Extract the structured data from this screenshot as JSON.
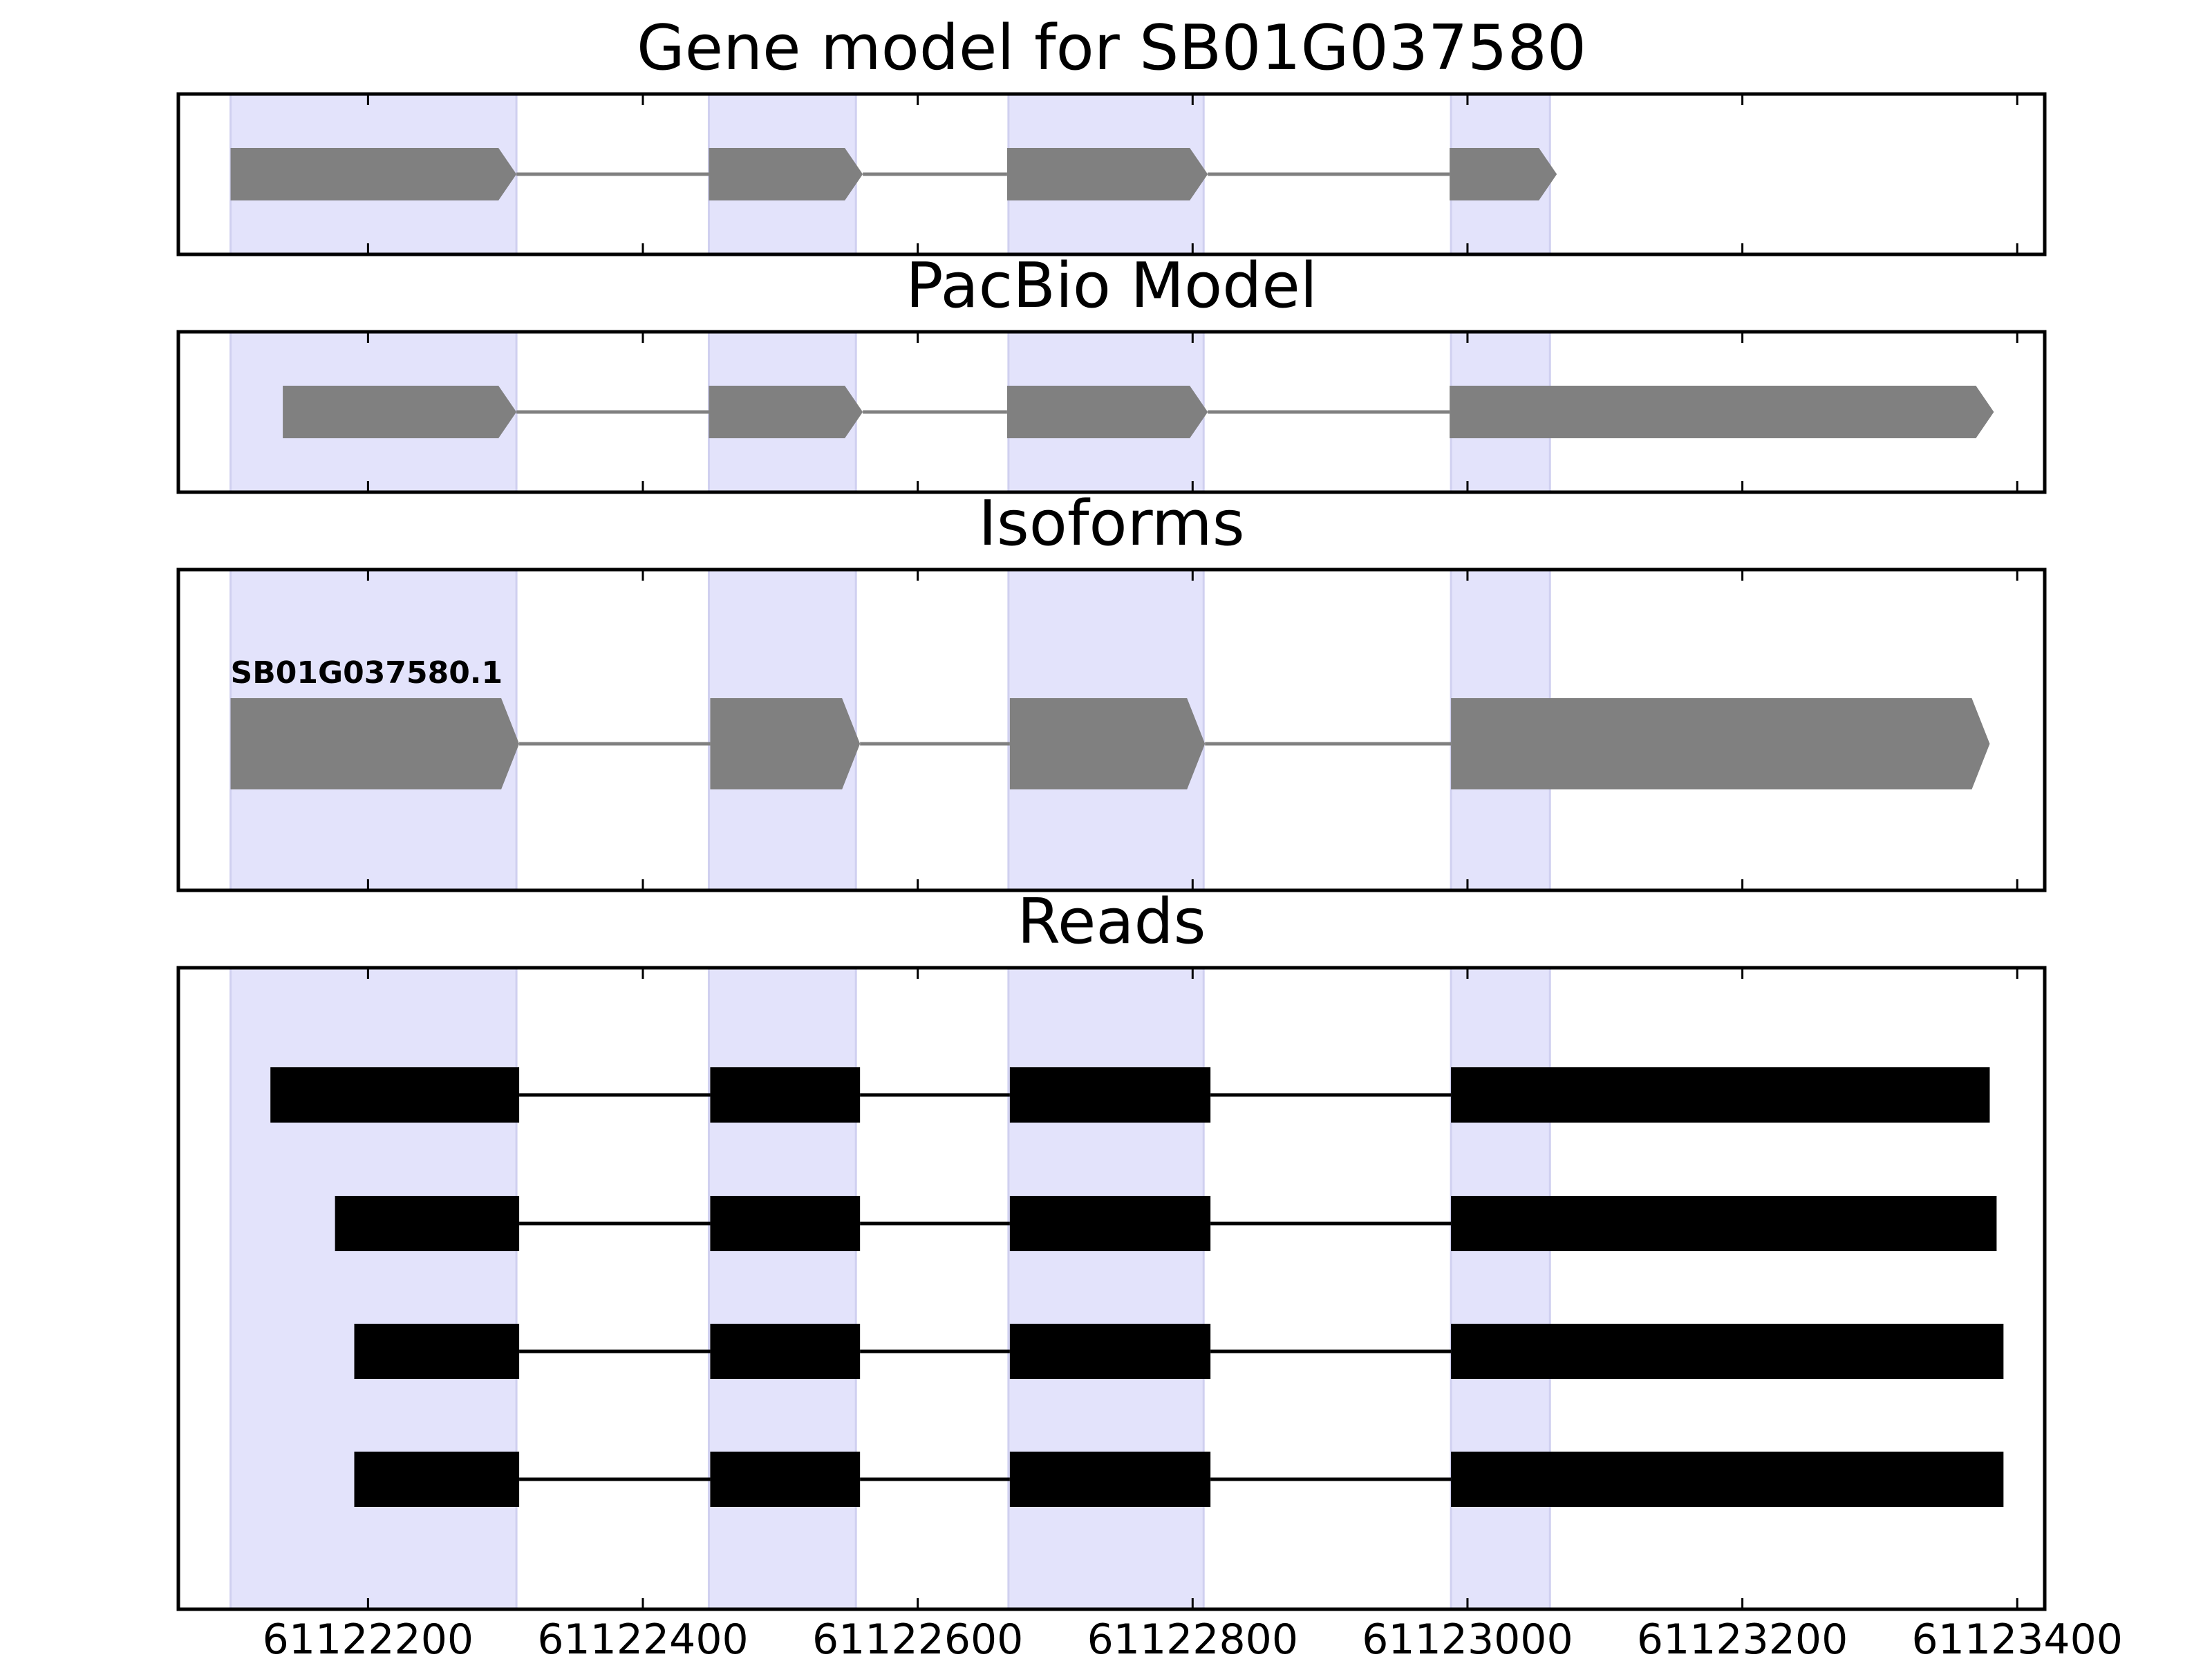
{
  "chart_data": {
    "type": "gene_structure",
    "x_axis": {
      "ticks": [
        61122200,
        61122400,
        61122600,
        61122800,
        61123000,
        61123200,
        61123400
      ],
      "tick_labels": [
        "61122200",
        "61122400",
        "61122600",
        "61122800",
        "61123000",
        "61123200",
        "61123400"
      ],
      "range": [
        61122062,
        61123420
      ]
    },
    "highlight_regions": [
      [
        61122100,
        61122308
      ],
      [
        61122448,
        61122555
      ],
      [
        61122666,
        61122808
      ],
      [
        61122988,
        61123060
      ]
    ],
    "colors": {
      "highlight": "#e3e3fb",
      "model": "#808080",
      "reads": "#000000",
      "intron": "#808080"
    },
    "panels": [
      {
        "title": "Gene model for SB01G037580",
        "kind": "model",
        "tracks": [
          {
            "label": "",
            "strand": "+",
            "exons": [
              [
                61122100,
                61122308
              ],
              [
                61122448,
                61122560
              ],
              [
                61122665,
                61122811
              ],
              [
                61122987,
                61123065
              ]
            ]
          }
        ]
      },
      {
        "title": "PacBio Model",
        "kind": "model",
        "tracks": [
          {
            "label": "",
            "strand": "+",
            "exons": [
              [
                61122138,
                61122308
              ],
              [
                61122448,
                61122560
              ],
              [
                61122665,
                61122811
              ],
              [
                61122987,
                61123383
              ]
            ]
          }
        ]
      },
      {
        "title": "Isoforms",
        "kind": "model",
        "tracks": [
          {
            "label": "SB01G037580.1",
            "strand": "+",
            "exons": [
              [
                61122100,
                61122310
              ],
              [
                61122449,
                61122558
              ],
              [
                61122667,
                61122809
              ],
              [
                61122988,
                61123380
              ]
            ]
          }
        ]
      },
      {
        "title": "Reads",
        "kind": "reads",
        "tracks": [
          {
            "label": "",
            "strand": "+",
            "exons": [
              [
                61122129,
                61122310
              ],
              [
                61122449,
                61122558
              ],
              [
                61122667,
                61122813
              ],
              [
                61122988,
                61123380
              ]
            ]
          },
          {
            "label": "",
            "strand": "+",
            "exons": [
              [
                61122176,
                61122310
              ],
              [
                61122449,
                61122558
              ],
              [
                61122667,
                61122813
              ],
              [
                61122988,
                61123385
              ]
            ]
          },
          {
            "label": "",
            "strand": "+",
            "exons": [
              [
                61122190,
                61122310
              ],
              [
                61122449,
                61122558
              ],
              [
                61122667,
                61122813
              ],
              [
                61122988,
                61123390
              ]
            ]
          },
          {
            "label": "",
            "strand": "+",
            "exons": [
              [
                61122190,
                61122310
              ],
              [
                61122449,
                61122558
              ],
              [
                61122667,
                61122813
              ],
              [
                61122988,
                61123390
              ]
            ]
          }
        ]
      }
    ]
  }
}
